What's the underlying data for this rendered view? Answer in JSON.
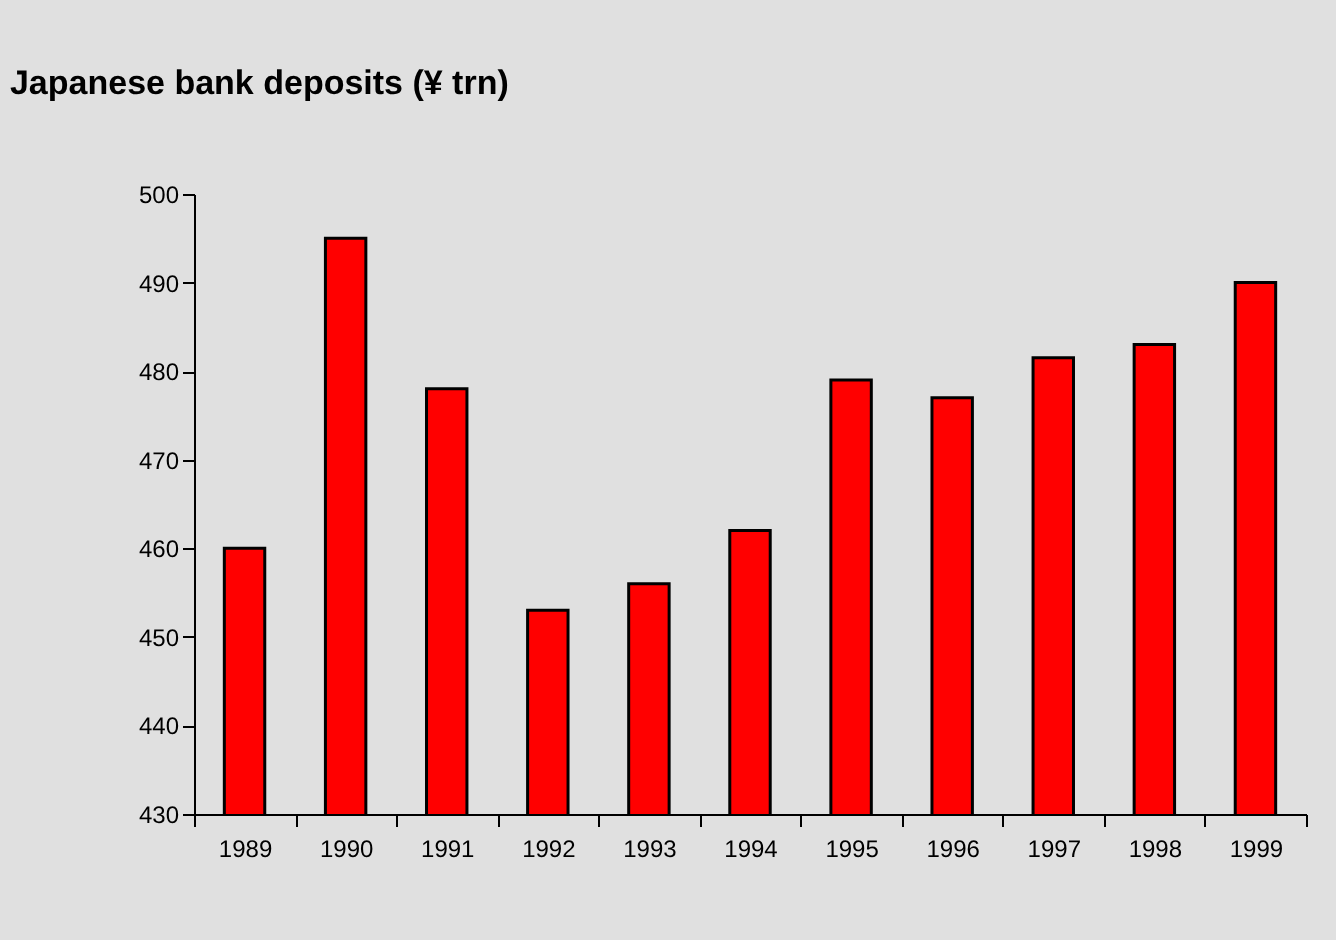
{
  "chart_data": {
    "type": "bar",
    "title": "Japanese bank deposits (¥ trn)",
    "categories": [
      "1989",
      "1990",
      "1991",
      "1992",
      "1993",
      "1994",
      "1995",
      "1996",
      "1997",
      "1998",
      "1999"
    ],
    "values": [
      460,
      495,
      478,
      453,
      456,
      462,
      479,
      477,
      481.5,
      483,
      490
    ],
    "color": "#ff0000",
    "ylim": [
      430,
      500
    ],
    "yticks": [
      430,
      440,
      450,
      460,
      470,
      480,
      490,
      500
    ]
  }
}
